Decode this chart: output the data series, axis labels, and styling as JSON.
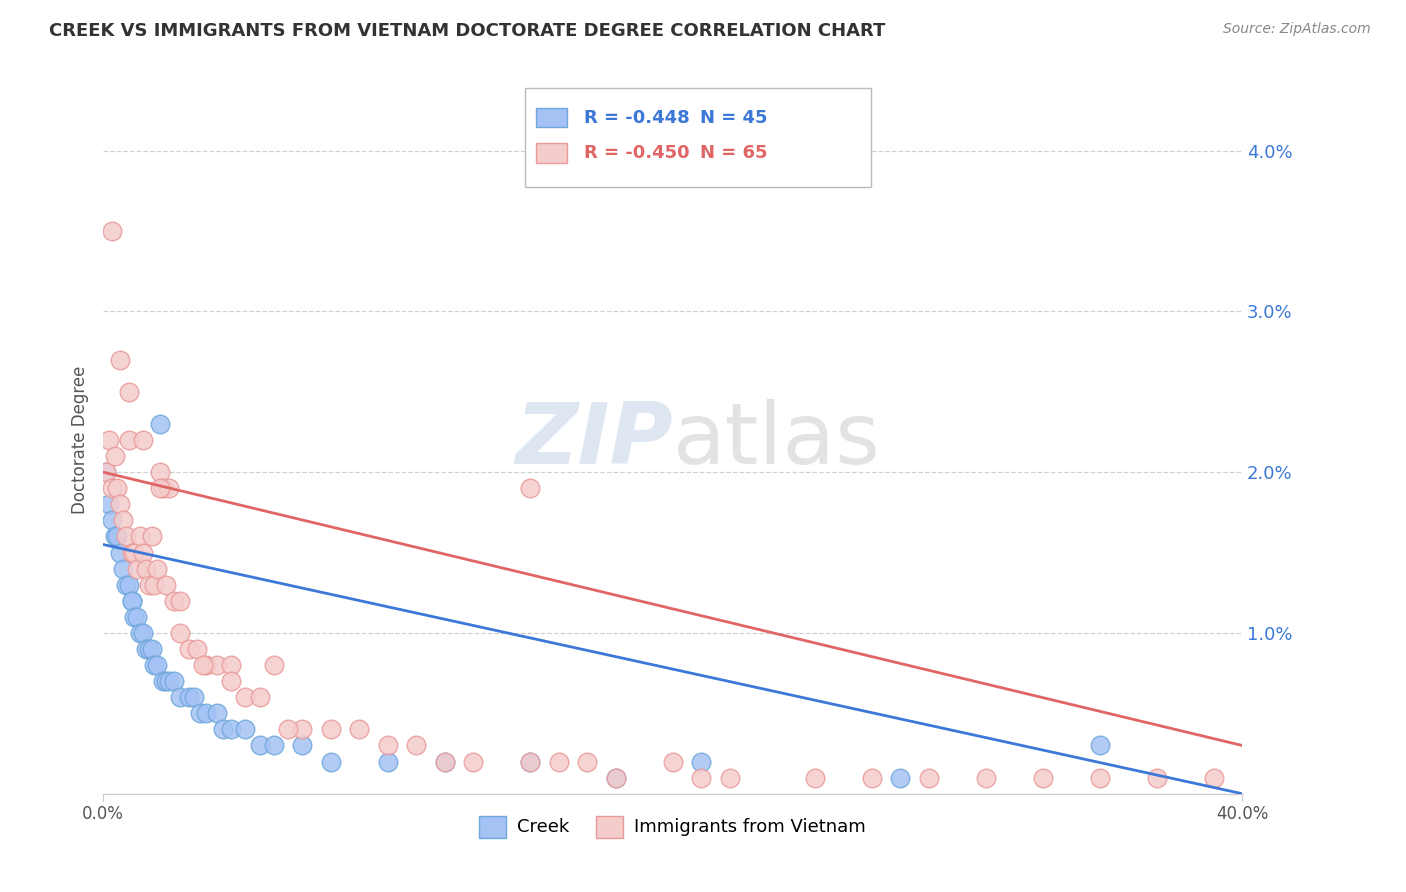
{
  "title": "CREEK VS IMMIGRANTS FROM VIETNAM DOCTORATE DEGREE CORRELATION CHART",
  "source": "Source: ZipAtlas.com",
  "ylabel": "Doctorate Degree",
  "right_yticks": [
    "4.0%",
    "3.0%",
    "2.0%",
    "1.0%"
  ],
  "right_ytick_vals": [
    0.04,
    0.03,
    0.02,
    0.01
  ],
  "xlim": [
    0.0,
    0.4
  ],
  "ylim": [
    0.0,
    0.044
  ],
  "watermark": "ZIPatlas",
  "creek_R": "-0.448",
  "creek_N": "45",
  "vietnam_R": "-0.450",
  "vietnam_N": "65",
  "creek_color_edge": "#6fa8dc",
  "creek_color_fill": "#a4c2f4",
  "vietnam_color_edge": "#ea9999",
  "vietnam_color_fill": "#f4cccc",
  "line_creek_color": "#3c78d8",
  "line_vietnam_color": "#e06666",
  "creek_points_x": [
    0.001,
    0.002,
    0.003,
    0.004,
    0.005,
    0.006,
    0.007,
    0.008,
    0.009,
    0.01,
    0.01,
    0.011,
    0.012,
    0.013,
    0.014,
    0.015,
    0.016,
    0.017,
    0.018,
    0.019,
    0.02,
    0.021,
    0.022,
    0.023,
    0.025,
    0.027,
    0.03,
    0.032,
    0.034,
    0.036,
    0.04,
    0.042,
    0.045,
    0.05,
    0.055,
    0.06,
    0.07,
    0.08,
    0.1,
    0.12,
    0.15,
    0.18,
    0.21,
    0.28,
    0.35
  ],
  "creek_points_y": [
    0.02,
    0.018,
    0.017,
    0.016,
    0.016,
    0.015,
    0.014,
    0.013,
    0.013,
    0.012,
    0.012,
    0.011,
    0.011,
    0.01,
    0.01,
    0.009,
    0.009,
    0.009,
    0.008,
    0.008,
    0.023,
    0.007,
    0.007,
    0.007,
    0.007,
    0.006,
    0.006,
    0.006,
    0.005,
    0.005,
    0.005,
    0.004,
    0.004,
    0.004,
    0.003,
    0.003,
    0.003,
    0.002,
    0.002,
    0.002,
    0.002,
    0.001,
    0.002,
    0.001,
    0.003
  ],
  "vietnam_points_x": [
    0.001,
    0.002,
    0.003,
    0.004,
    0.005,
    0.006,
    0.007,
    0.008,
    0.009,
    0.01,
    0.011,
    0.012,
    0.013,
    0.014,
    0.015,
    0.016,
    0.017,
    0.018,
    0.019,
    0.02,
    0.021,
    0.022,
    0.023,
    0.025,
    0.027,
    0.03,
    0.033,
    0.036,
    0.04,
    0.045,
    0.05,
    0.055,
    0.06,
    0.07,
    0.08,
    0.09,
    0.1,
    0.11,
    0.12,
    0.13,
    0.15,
    0.16,
    0.17,
    0.18,
    0.2,
    0.21,
    0.22,
    0.25,
    0.27,
    0.29,
    0.31,
    0.33,
    0.35,
    0.37,
    0.39,
    0.003,
    0.006,
    0.009,
    0.014,
    0.02,
    0.027,
    0.035,
    0.045,
    0.065,
    0.15
  ],
  "vietnam_points_y": [
    0.02,
    0.022,
    0.019,
    0.021,
    0.019,
    0.018,
    0.017,
    0.016,
    0.022,
    0.015,
    0.015,
    0.014,
    0.016,
    0.015,
    0.014,
    0.013,
    0.016,
    0.013,
    0.014,
    0.02,
    0.019,
    0.013,
    0.019,
    0.012,
    0.01,
    0.009,
    0.009,
    0.008,
    0.008,
    0.008,
    0.006,
    0.006,
    0.008,
    0.004,
    0.004,
    0.004,
    0.003,
    0.003,
    0.002,
    0.002,
    0.002,
    0.002,
    0.002,
    0.001,
    0.002,
    0.001,
    0.001,
    0.001,
    0.001,
    0.001,
    0.001,
    0.001,
    0.001,
    0.001,
    0.001,
    0.035,
    0.027,
    0.025,
    0.022,
    0.019,
    0.012,
    0.008,
    0.007,
    0.004,
    0.019
  ],
  "creek_trend_x0": 0.0,
  "creek_trend_x1": 0.4,
  "creek_trend_y0": 0.0155,
  "creek_trend_y1": 0.0,
  "vietnam_trend_x0": 0.0,
  "vietnam_trend_x1": 0.4,
  "vietnam_trend_y0": 0.02,
  "vietnam_trend_y1": 0.003
}
